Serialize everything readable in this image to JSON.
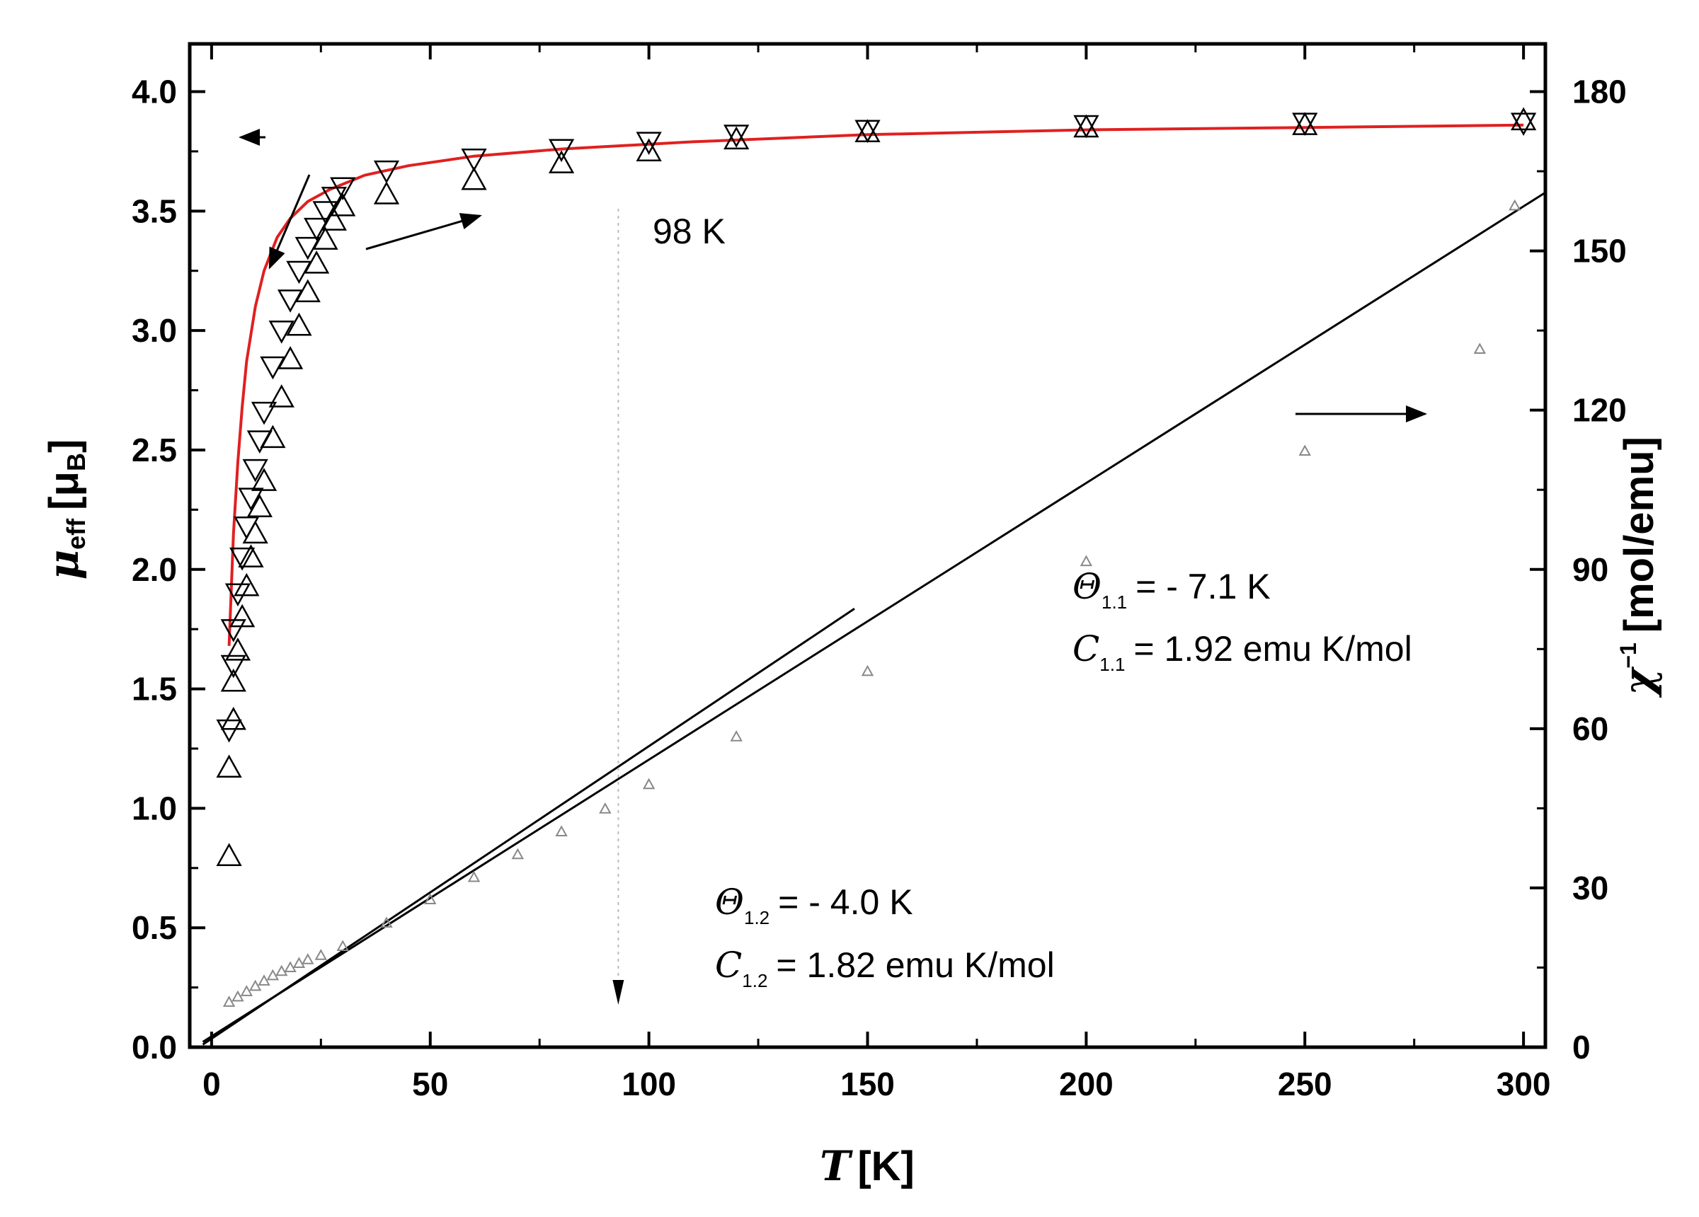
{
  "chart_data": {
    "type": "scatter",
    "x_axis": {
      "label": "T [K]",
      "label_parts": {
        "symbol": "T",
        "unit": "[K]"
      },
      "range": [
        -5,
        305
      ],
      "ticks": [
        0,
        50,
        100,
        150,
        200,
        250,
        300
      ],
      "tick_labels": [
        "0",
        "50",
        "100",
        "150",
        "200",
        "250",
        "300"
      ]
    },
    "y_left_axis": {
      "label": "μeff [μB]",
      "label_parts": {
        "symbol": "μ",
        "sub": "eff",
        "unit_open": "[μ",
        "unit_sub": "B",
        "unit_close": "]"
      },
      "range": [
        0,
        4.2
      ],
      "ticks": [
        0,
        0.5,
        1,
        1.5,
        2,
        2.5,
        3,
        3.5,
        4
      ],
      "tick_labels": [
        "0.0",
        "0.5",
        "1.0",
        "1.5",
        "2.0",
        "2.5",
        "3.0",
        "3.5",
        "4.0"
      ]
    },
    "y_right_axis": {
      "label": "χ−1 [mol/emu]",
      "label_parts": {
        "symbol": "χ",
        "sup": "−1",
        "unit": "[mol/emu]"
      },
      "range": [
        0,
        189
      ],
      "ticks": [
        0,
        30,
        60,
        90,
        120,
        150,
        180
      ],
      "tick_labels": [
        "0",
        "30",
        "60",
        "90",
        "120",
        "150",
        "180"
      ]
    },
    "grid": false,
    "series": [
      {
        "marker": "triangle-up",
        "axis": "left",
        "x": [
          4,
          4,
          5,
          5,
          6,
          7,
          8,
          9,
          10,
          11,
          12,
          14,
          16,
          18,
          20,
          22,
          24,
          26,
          28,
          30,
          40,
          60,
          80,
          100,
          120,
          150,
          200,
          250,
          300
        ],
        "y": [
          0.8,
          1.17,
          1.37,
          1.53,
          1.66,
          1.8,
          1.93,
          2.05,
          2.15,
          2.26,
          2.37,
          2.55,
          2.72,
          2.88,
          3.02,
          3.16,
          3.28,
          3.38,
          3.46,
          3.52,
          3.57,
          3.63,
          3.7,
          3.75,
          3.8,
          3.83,
          3.85,
          3.86,
          3.88
        ]
      },
      {
        "marker": "triangle-down",
        "axis": "left",
        "x": [
          4,
          5,
          5,
          6,
          7,
          8,
          9,
          10,
          11,
          12,
          14,
          16,
          18,
          20,
          22,
          24,
          26,
          28,
          30,
          40,
          60,
          80,
          100,
          120,
          150,
          200,
          250,
          300
        ],
        "y": [
          1.33,
          1.6,
          1.75,
          1.9,
          2.05,
          2.18,
          2.3,
          2.42,
          2.54,
          2.66,
          2.85,
          3.0,
          3.13,
          3.25,
          3.35,
          3.43,
          3.5,
          3.56,
          3.6,
          3.67,
          3.72,
          3.76,
          3.79,
          3.82,
          3.84,
          3.86,
          3.87,
          3.87
        ]
      },
      {
        "marker": "small-triangle",
        "axis": "right",
        "x": [
          4,
          6,
          8,
          10,
          12,
          14,
          16,
          18,
          20,
          22,
          25,
          30,
          40,
          50,
          60,
          70,
          80,
          90,
          100,
          120,
          150,
          200,
          250,
          290,
          298
        ],
        "y": [
          8.5,
          9.5,
          10.5,
          11.5,
          12.5,
          13.5,
          14.3,
          15.0,
          15.8,
          16.5,
          17.3,
          19.0,
          23.4,
          27.8,
          32.0,
          36.3,
          40.6,
          44.9,
          49.5,
          58.5,
          70.8,
          91.5,
          112.3,
          131.5,
          158.5
        ]
      }
    ],
    "fits": [
      {
        "type": "curve",
        "axis": "left",
        "color": "#e02020",
        "x": [
          4,
          5,
          6,
          7,
          8,
          10,
          12,
          15,
          18,
          22,
          27,
          35,
          45,
          60,
          80,
          110,
          150,
          200,
          250,
          300
        ],
        "y": [
          1.68,
          2.15,
          2.45,
          2.68,
          2.87,
          3.1,
          3.25,
          3.39,
          3.47,
          3.54,
          3.59,
          3.65,
          3.69,
          3.73,
          3.76,
          3.79,
          3.82,
          3.84,
          3.85,
          3.86
        ]
      },
      {
        "type": "line",
        "axis": "right",
        "x": [
          -2,
          305
        ],
        "y": [
          1.0,
          161.0
        ]
      },
      {
        "type": "line",
        "axis": "right",
        "x": [
          -2,
          147
        ],
        "y": [
          0.5,
          82.6
        ]
      }
    ],
    "annotations": {
      "temperature_label": "98 K",
      "temperature_marker_x": 93,
      "fit_1_1": {
        "theta_symbol": "Θ",
        "theta_sub": "1.1",
        "theta_value": "= - 7.1 K",
        "c_symbol": "C",
        "c_sub": "1.1",
        "c_value": "= 1.92 emu K/mol"
      },
      "fit_1_2": {
        "theta_symbol": "Θ",
        "theta_sub": "1.2",
        "theta_value": "= - 4.0 K",
        "c_symbol": "C",
        "c_sub": "1.2",
        "c_value": "= 1.82 emu K/mol"
      }
    }
  }
}
